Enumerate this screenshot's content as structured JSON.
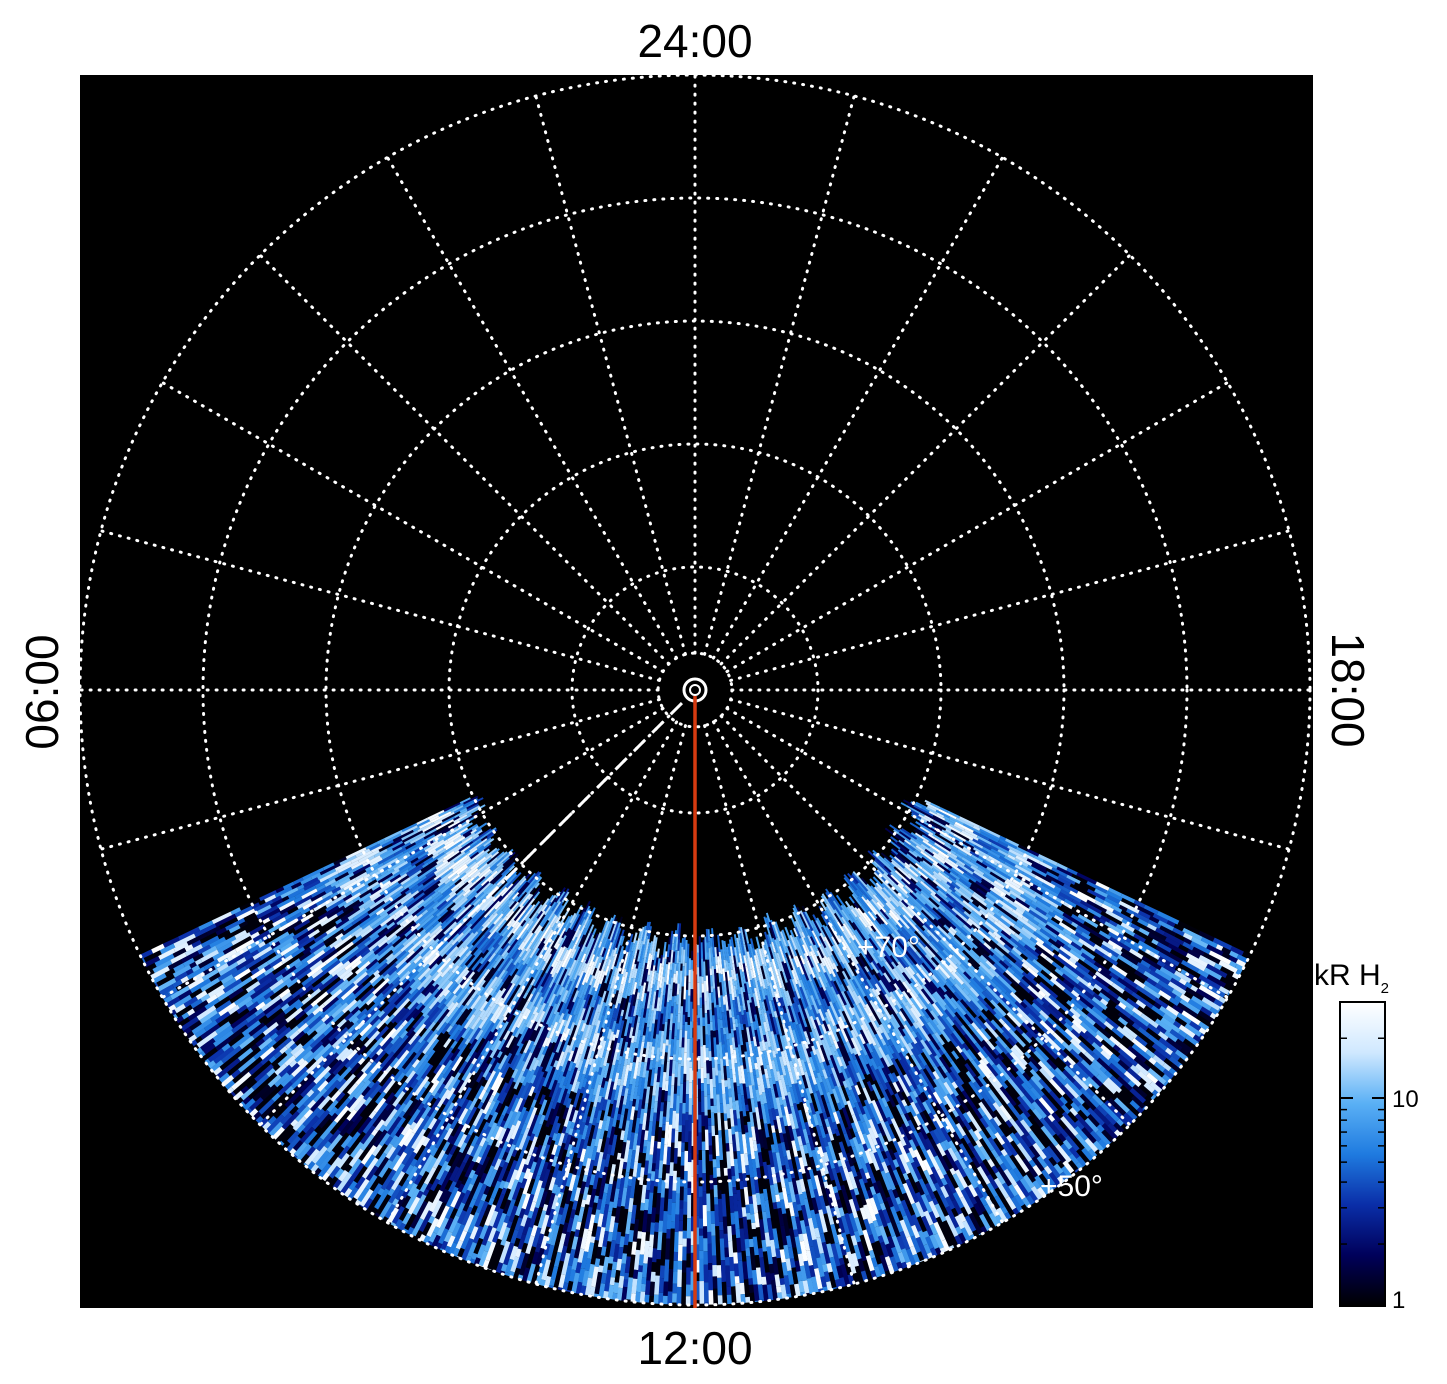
{
  "chart_data": {
    "type": "heatmap",
    "projection": "polar",
    "local_time_labels": {
      "top": "24:00",
      "bottom": "12:00",
      "left": "06:00",
      "right": "18:00"
    },
    "latitude_labels": [
      "+70°",
      "+50°"
    ],
    "latitude_circles_deg": [
      87,
      80,
      70,
      60,
      50,
      40
    ],
    "lt_step_hours": 1,
    "grid": true,
    "colorbar": {
      "label": "kR H",
      "label_sub": "2",
      "scale": "log",
      "ticks": [
        "1",
        "10"
      ],
      "range": [
        1,
        30
      ],
      "colors": [
        "#000000",
        "#00005a",
        "#0a2ea8",
        "#1f7be0",
        "#5ab0f5",
        "#cfe8ff",
        "#ffffff"
      ]
    },
    "emission": {
      "lat_range_deg": [
        40,
        71
      ],
      "lt_range_hours": [
        7.7,
        16.3
      ]
    },
    "annotations": {
      "red_line_lt": "12:00",
      "dashed_line_lt": "09:00"
    }
  }
}
